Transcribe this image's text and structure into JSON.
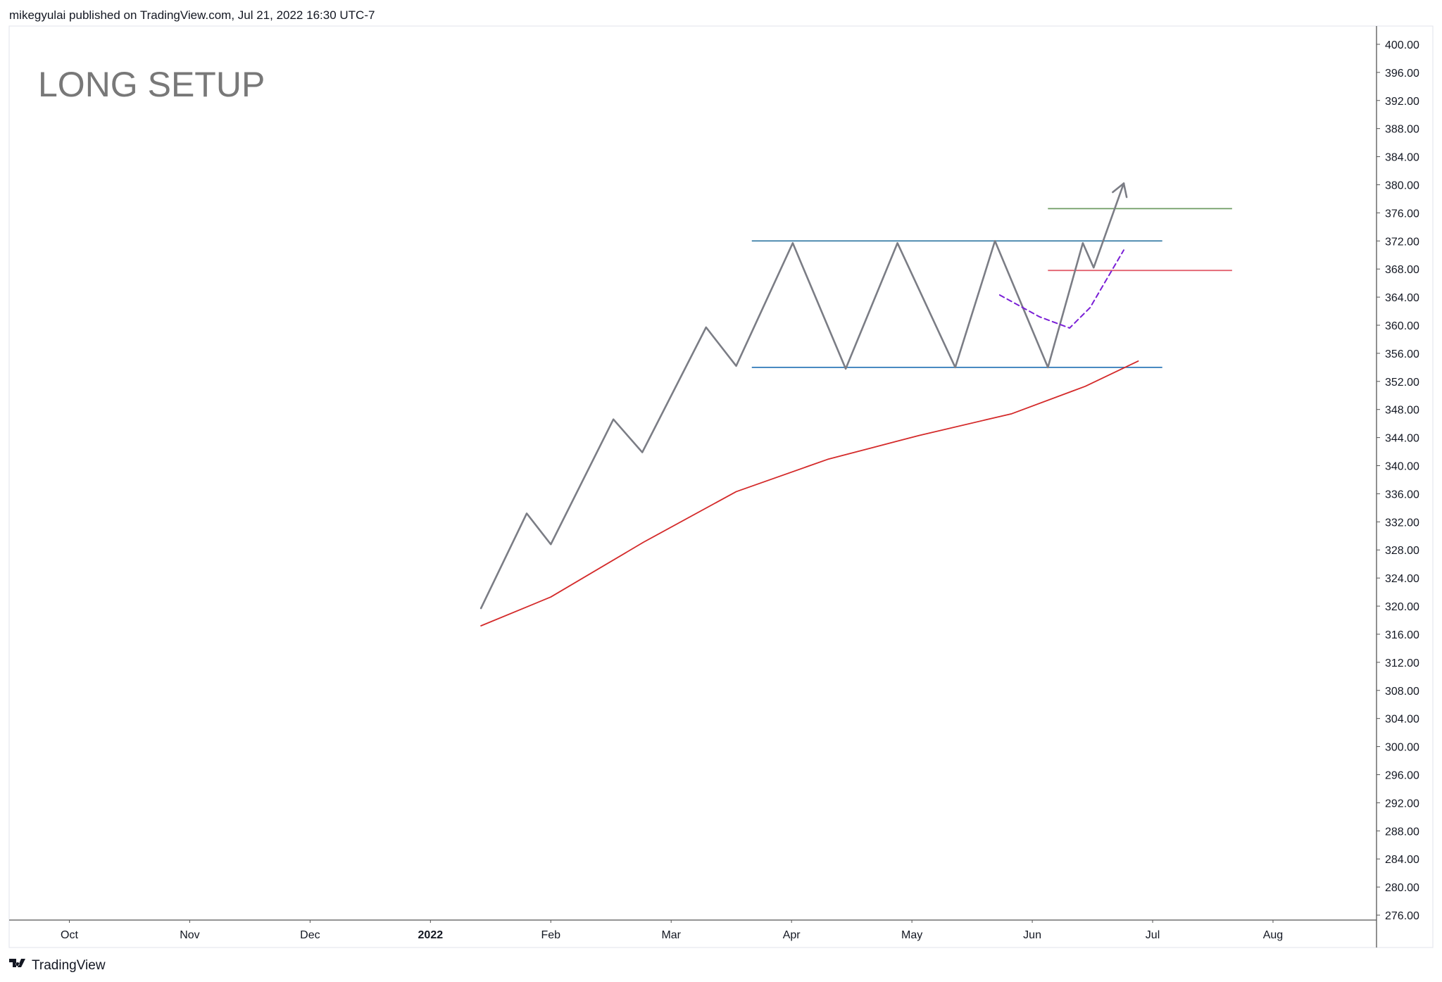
{
  "header": {
    "text": "mikegyulai published on TradingView.com, Jul 21, 2022 16:30 UTC-7"
  },
  "footer": {
    "brand": "TradingView"
  },
  "chart_data": {
    "type": "line",
    "title": "LONG SETUP",
    "xlim": [
      9.5,
      20.86
    ],
    "ylim": [
      275.3,
      402.6
    ],
    "xticks": [
      {
        "value": 10,
        "label": "Oct"
      },
      {
        "value": 11,
        "label": "Nov"
      },
      {
        "value": 12,
        "label": "Dec"
      },
      {
        "value": 13,
        "label": "2022",
        "bold": true
      },
      {
        "value": 14,
        "label": "Feb"
      },
      {
        "value": 15,
        "label": "Mar"
      },
      {
        "value": 16,
        "label": "Apr"
      },
      {
        "value": 17,
        "label": "May"
      },
      {
        "value": 18,
        "label": "Jun"
      },
      {
        "value": 19,
        "label": "Jul"
      },
      {
        "value": 20,
        "label": "Aug"
      }
    ],
    "yticks": [
      {
        "value": 276,
        "label": "276.00"
      },
      {
        "value": 280,
        "label": "280.00"
      },
      {
        "value": 284,
        "label": "284.00"
      },
      {
        "value": 288,
        "label": "288.00"
      },
      {
        "value": 292,
        "label": "292.00"
      },
      {
        "value": 296,
        "label": "296.00"
      },
      {
        "value": 300,
        "label": "300.00"
      },
      {
        "value": 304,
        "label": "304.00"
      },
      {
        "value": 308,
        "label": "308.00"
      },
      {
        "value": 312,
        "label": "312.00"
      },
      {
        "value": 316,
        "label": "316.00"
      },
      {
        "value": 320,
        "label": "320.00"
      },
      {
        "value": 324,
        "label": "324.00"
      },
      {
        "value": 328,
        "label": "328.00"
      },
      {
        "value": 332,
        "label": "332.00"
      },
      {
        "value": 336,
        "label": "336.00"
      },
      {
        "value": 340,
        "label": "340.00"
      },
      {
        "value": 344,
        "label": "344.00"
      },
      {
        "value": 348,
        "label": "348.00"
      },
      {
        "value": 352,
        "label": "352.00"
      },
      {
        "value": 356,
        "label": "356.00"
      },
      {
        "value": 360,
        "label": "360.00"
      },
      {
        "value": 364,
        "label": "364.00"
      },
      {
        "value": 368,
        "label": "368.00"
      },
      {
        "value": 372,
        "label": "372.00"
      },
      {
        "value": 376,
        "label": "376.00"
      },
      {
        "value": 380,
        "label": "380.00"
      },
      {
        "value": 384,
        "label": "384.00"
      },
      {
        "value": 388,
        "label": "388.00"
      },
      {
        "value": 392,
        "label": "392.00"
      },
      {
        "value": 396,
        "label": "396.00"
      },
      {
        "value": 400,
        "label": "400.00"
      }
    ],
    "series": [
      {
        "color": "#7b7d85",
        "width": 2.6,
        "arrow": true,
        "x": [
          13.42,
          13.8,
          14.0,
          14.52,
          14.76,
          15.29,
          15.54,
          16.01,
          16.45,
          16.88,
          17.36,
          17.69,
          18.13,
          18.42,
          18.51,
          18.76
        ],
        "values": [
          319.7,
          333.2,
          328.8,
          346.6,
          341.9,
          359.7,
          354.2,
          371.7,
          353.8,
          371.7,
          354.0,
          372.0,
          354.0,
          371.7,
          368.2,
          380.2
        ]
      },
      {
        "color": "#d42a2a",
        "width": 1.8,
        "x": [
          13.42,
          14.0,
          14.77,
          15.54,
          16.3,
          17.06,
          17.83,
          18.44,
          18.88
        ],
        "values": [
          317.2,
          321.3,
          329.1,
          336.3,
          340.9,
          344.3,
          347.4,
          351.3,
          354.9
        ]
      },
      {
        "color": "#7a1fd6",
        "width": 2,
        "dashed": true,
        "x": [
          17.73,
          18.06,
          18.31,
          18.48,
          18.76
        ],
        "values": [
          364.3,
          361.2,
          359.6,
          362.5,
          370.7
        ]
      }
    ],
    "hlines": [
      {
        "value": 372.0,
        "x": [
          15.67,
          19.08
        ],
        "color": "#3a7ea6"
      },
      {
        "value": 354.0,
        "x": [
          15.67,
          19.08
        ],
        "color": "#2f78b8"
      },
      {
        "value": 376.6,
        "x": [
          18.13,
          19.66
        ],
        "color": "#6f9c63"
      },
      {
        "value": 367.8,
        "x": [
          18.13,
          19.66
        ],
        "color": "#e2606e"
      }
    ]
  }
}
